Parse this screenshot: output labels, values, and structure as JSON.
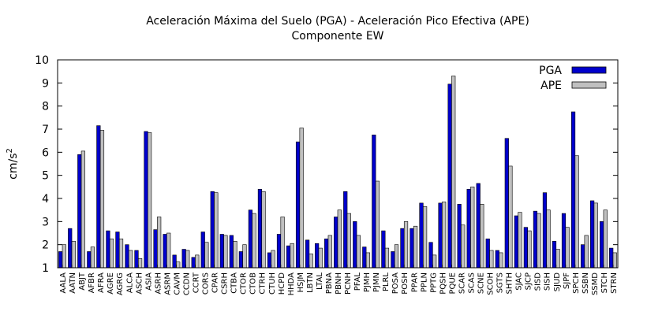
{
  "chart_data": {
    "type": "bar",
    "title": "Aceleración Máxima del Suelo (PGA) -  Aceleración Pico Efectiva (APE)",
    "subtitle": "Componente EW",
    "xlabel": "",
    "ylabel": "cm/s",
    "ylabel_superscript": "2",
    "ylim": [
      1,
      10
    ],
    "yticks": [
      "1",
      "2",
      "3",
      "4",
      "5",
      "6",
      "7",
      "8",
      "9",
      "10"
    ],
    "grid": false,
    "legend_position": "top-right",
    "categories": [
      "AALA",
      "AATN",
      "ABJT",
      "AFBR",
      "AFRA",
      "AGRE",
      "AGRG",
      "ALCA",
      "ASCH",
      "ASIA",
      "ASRH",
      "ASRM",
      "CAVM",
      "CCDN",
      "CCRT",
      "CORS",
      "CPAR",
      "CSRH",
      "CTBA",
      "CTOR",
      "CTOB",
      "CTRH",
      "CTUH",
      "HCPD",
      "HHDA",
      "HSJM",
      "LBTN",
      "LTAL",
      "PBNA",
      "PBNH",
      "PCNH",
      "PFAL",
      "PJMH",
      "PJMN",
      "PLRL",
      "POSA",
      "POSH",
      "PPAR",
      "PPLN",
      "PPTG",
      "PQSH",
      "PQUE",
      "SCAR",
      "SCAS",
      "SCNE",
      "SCOH",
      "SGTS",
      "SHTH",
      "SJAC",
      "SJCP",
      "SISD",
      "SISH",
      "SJUD",
      "SJPF",
      "SPCH",
      "SSBN",
      "SSMD",
      "STCH",
      "STRN"
    ],
    "series": [
      {
        "name": "PGA",
        "color": "#0000cc",
        "values": [
          1.7,
          2.7,
          5.9,
          1.7,
          7.15,
          2.6,
          2.55,
          2.0,
          1.75,
          6.9,
          2.65,
          2.45,
          1.55,
          1.8,
          1.45,
          2.55,
          4.3,
          2.45,
          2.4,
          1.7,
          3.5,
          4.4,
          1.65,
          2.45,
          1.95,
          6.45,
          2.2,
          2.05,
          2.25,
          3.2,
          4.3,
          3.0,
          1.9,
          6.75,
          2.6,
          1.7,
          2.7,
          2.7,
          3.8,
          2.1,
          3.8,
          8.95,
          3.75,
          4.4,
          4.65,
          2.25,
          1.75,
          6.6,
          3.25,
          2.75,
          3.45,
          4.25,
          2.15,
          3.35,
          7.75,
          2.0,
          3.9,
          3.0,
          1.85
        ]
      },
      {
        "name": "APE",
        "color": "#c0c0c0",
        "values": [
          2.0,
          2.15,
          6.05,
          1.9,
          6.95,
          2.25,
          2.25,
          1.75,
          1.4,
          6.85,
          3.2,
          2.5,
          1.25,
          1.75,
          1.55,
          2.1,
          4.25,
          2.4,
          2.15,
          2.0,
          3.35,
          4.3,
          1.75,
          3.2,
          2.05,
          7.05,
          1.6,
          1.85,
          2.4,
          3.5,
          3.35,
          2.4,
          1.65,
          4.75,
          1.85,
          2.0,
          3.0,
          2.8,
          3.65,
          1.55,
          3.85,
          9.3,
          2.85,
          4.5,
          3.75,
          1.75,
          1.65,
          5.4,
          3.4,
          2.6,
          3.35,
          3.5,
          1.8,
          2.75,
          5.85,
          2.4,
          3.8,
          3.5,
          1.65
        ]
      }
    ]
  }
}
